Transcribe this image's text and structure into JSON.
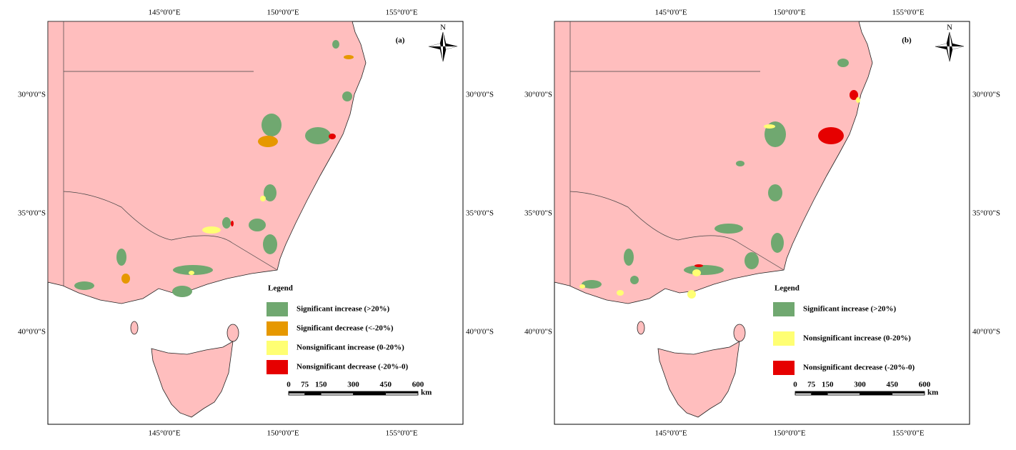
{
  "panels": [
    {
      "label": "(a)",
      "top_ticks": [
        "145°0'0\"E",
        "150°0'0\"E",
        "155°0'0\"E"
      ],
      "bottom_ticks": [
        "145°0'0\"E",
        "150°0'0\"E",
        "155°0'0\"E"
      ],
      "left_ticks": [
        "30°0'0\"S",
        "35°0'0\"S",
        "40°0'0\"S"
      ],
      "right_ticks": [
        "30°0'0\"S",
        "35°0'0\"S",
        "40°0'0\"S"
      ],
      "north": "N",
      "legend": {
        "title": "Legend",
        "items": [
          {
            "label": "Significant increase (>20%)",
            "color": "#70a870"
          },
          {
            "label": "Significant decrease (<-20%)",
            "color": "#e69800"
          },
          {
            "label": "Nonsignificant increase (0-20%)",
            "color": "#ffff73"
          },
          {
            "label": "Nonsignificant decrease (-20%-0)",
            "color": "#e60000"
          }
        ]
      },
      "scale": {
        "ticks": [
          0,
          75,
          150,
          300,
          450,
          600
        ],
        "unit": "km"
      }
    },
    {
      "label": "(b)",
      "top_ticks": [
        "145°0'0\"E",
        "150°0'0\"E",
        "155°0'0\"E"
      ],
      "bottom_ticks": [
        "145°0'0\"E",
        "150°0'0\"E",
        "155°0'0\"E"
      ],
      "left_ticks": [
        "30°0'0\"S",
        "35°0'0\"S",
        "40°0'0\"S"
      ],
      "right_ticks": [
        "30°0'0\"S",
        "35°0'0\"S",
        "40°0'0\"S"
      ],
      "north": "N",
      "legend": {
        "title": "Legend",
        "items": [
          {
            "label": "Significant increase (>20%)",
            "color": "#70a870"
          },
          {
            "label": "Nonsignificant increase (0-20%)",
            "color": "#ffff73"
          },
          {
            "label": "Nonsignificant decrease (-20%-0)",
            "color": "#e60000"
          }
        ]
      },
      "scale": {
        "ticks": [
          0,
          75,
          150,
          300,
          450,
          600
        ],
        "unit": "km"
      }
    }
  ]
}
